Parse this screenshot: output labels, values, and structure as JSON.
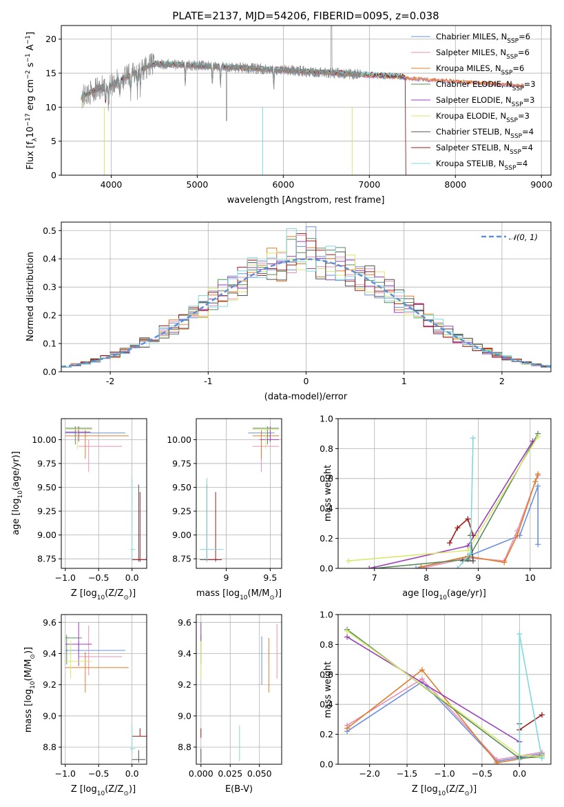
{
  "chart_data": [
    {
      "id": "spectrum",
      "type": "line",
      "title": "PLATE=2137, MJD=54206, FIBERID=0095, z=0.038",
      "xlabel": "wavelength [Angstrom, rest frame]",
      "ylabel_main": "Flux [f",
      "ylabel_sub1": "λ",
      "ylabel_mid": "10",
      "ylabel_sup1": "−17",
      "ylabel_mid2": " erg cm",
      "ylabel_sup2": "−2",
      "ylabel_mid3": " s",
      "ylabel_sup3": "−1",
      "ylabel_mid4": " A",
      "ylabel_sup4": "−1",
      "ylabel_end": "]",
      "xlim": [
        3420,
        9110
      ],
      "ylim": [
        0,
        22
      ],
      "xticks": [
        4000,
        5000,
        6000,
        7000,
        8000,
        9000
      ],
      "yticks": [
        0,
        5,
        10,
        15,
        20
      ],
      "series": [
        {
          "name": "Chabrier MILES, N",
          "sub": "SSP",
          "suffix": "=6",
          "color": "#6a8fdc"
        },
        {
          "name": "Salpeter MILES, N",
          "sub": "SSP",
          "suffix": "=6",
          "color": "#e88fb8"
        },
        {
          "name": "Kroupa MILES, N",
          "sub": "SSP",
          "suffix": "=6",
          "color": "#e07b28"
        },
        {
          "name": "Chabrier ELODIE, N",
          "sub": "SSP",
          "suffix": "=3",
          "color": "#5a8c5a"
        },
        {
          "name": "Salpeter ELODIE, N",
          "sub": "SSP",
          "suffix": "=3",
          "color": "#9a3dbb"
        },
        {
          "name": "Kroupa ELODIE, N",
          "sub": "SSP",
          "suffix": "=3",
          "color": "#d8e86a"
        },
        {
          "name": "Chabrier STELIB, N",
          "sub": "SSP",
          "suffix": "=4",
          "color": "#505050"
        },
        {
          "name": "Salpeter STELIB, N",
          "sub": "SSP",
          "suffix": "=4",
          "color": "#a01818"
        },
        {
          "name": "Kroupa STELIB, N",
          "sub": "SSP",
          "suffix": "=4",
          "color": "#7fd8dc"
        }
      ],
      "data_color": "#8a8a8a"
    },
    {
      "id": "residuals",
      "type": "line",
      "xlabel": "(data-model)/error",
      "ylabel": "Normed distribution",
      "xlim": [
        -2.5,
        2.5
      ],
      "ylim": [
        0,
        0.53
      ],
      "xticks": [
        -2,
        -1,
        0,
        1,
        2
      ],
      "yticks": [
        0.0,
        0.1,
        0.2,
        0.3,
        0.4,
        0.5
      ],
      "legend": "𝒩(0, 1)",
      "legend_color": "#5b8fd6"
    },
    {
      "id": "age_vs_Z",
      "type": "scatter",
      "xlabel": "Z [log",
      "xlabel_sub": "10",
      "xlabel_end": "(Z/Z",
      "xlabel_sub2": "⊙",
      "xlabel_close": ")]",
      "ylabel": "age  [log",
      "ylabel_sub": "10",
      "ylabel_end": "(age/yr)]",
      "xlim": [
        -1.06,
        0.22
      ],
      "ylim": [
        8.65,
        10.22
      ],
      "xticks": [
        "−1.0",
        "−0.5",
        "0.0"
      ],
      "xtick_vals": [
        -1.0,
        -0.5,
        0.0
      ],
      "yticks": [
        8.75,
        9.0,
        9.25,
        9.5,
        9.75,
        10.0
      ]
    },
    {
      "id": "age_vs_mass",
      "type": "scatter",
      "xlabel": "mass [log",
      "xlabel_sub": "10",
      "xlabel_end": "(M/M",
      "xlabel_sub2": "⊙",
      "xlabel_close": ")]",
      "xlim": [
        8.66,
        9.63
      ],
      "ylim": [
        8.65,
        10.22
      ],
      "xticks": [
        9.0,
        9.5
      ],
      "yticks": [
        8.75,
        9.0,
        9.25,
        9.5,
        9.75,
        10.0
      ]
    },
    {
      "id": "mw_vs_age",
      "type": "line",
      "xlabel": "age  [log",
      "xlabel_sub": "10",
      "xlabel_end": "(age/yr)]",
      "ylabel": "mass weight",
      "xlim": [
        6.3,
        10.4
      ],
      "ylim": [
        0,
        1
      ],
      "xticks": [
        7,
        8,
        9,
        10
      ],
      "yticks": [
        0.0,
        0.2,
        0.4,
        0.6,
        0.8,
        1.0
      ]
    },
    {
      "id": "mass_vs_Z",
      "type": "scatter",
      "xlabel": "Z [log",
      "xlabel_sub": "10",
      "xlabel_end": "(Z/Z",
      "xlabel_sub2": "⊙",
      "xlabel_close": ")]",
      "ylabel": "mass [log",
      "ylabel_sub": "10",
      "ylabel_end": "(M/M",
      "ylabel_sub2": "⊙",
      "ylabel_close": ")]",
      "xlim": [
        -1.06,
        0.22
      ],
      "ylim": [
        8.69,
        9.65
      ],
      "xticks": [
        "−1.0",
        "−0.5",
        "0.0"
      ],
      "xtick_vals": [
        -1.0,
        -0.5,
        0.0
      ],
      "yticks": [
        8.8,
        9.0,
        9.2,
        9.4,
        9.6
      ]
    },
    {
      "id": "mass_vs_EBV",
      "type": "scatter",
      "xlabel": "E(B-V)",
      "xlim": [
        -0.004,
        0.069
      ],
      "ylim": [
        8.69,
        9.65
      ],
      "xticks": [
        "0.000",
        "0.025",
        "0.050"
      ],
      "xtick_vals": [
        0.0,
        0.025,
        0.05
      ],
      "yticks": [
        8.8,
        9.0,
        9.2,
        9.4,
        9.6
      ]
    },
    {
      "id": "mw_vs_Z",
      "type": "line",
      "xlabel": "Z [log",
      "xlabel_sub": "10",
      "xlabel_end": "(Z/Z",
      "xlabel_sub2": "⊙",
      "xlabel_close": ")]",
      "ylabel": "mass weight",
      "xlim": [
        -2.42,
        0.42
      ],
      "ylim": [
        0,
        1
      ],
      "xticks": [
        "−2.0",
        "−1.5",
        "−1.0",
        "−0.5",
        "0.0"
      ],
      "xtick_vals": [
        -2.0,
        -1.5,
        -1.0,
        -0.5,
        0.0
      ],
      "yticks": [
        0.0,
        0.2,
        0.4,
        0.6,
        0.8,
        1.0
      ]
    }
  ]
}
